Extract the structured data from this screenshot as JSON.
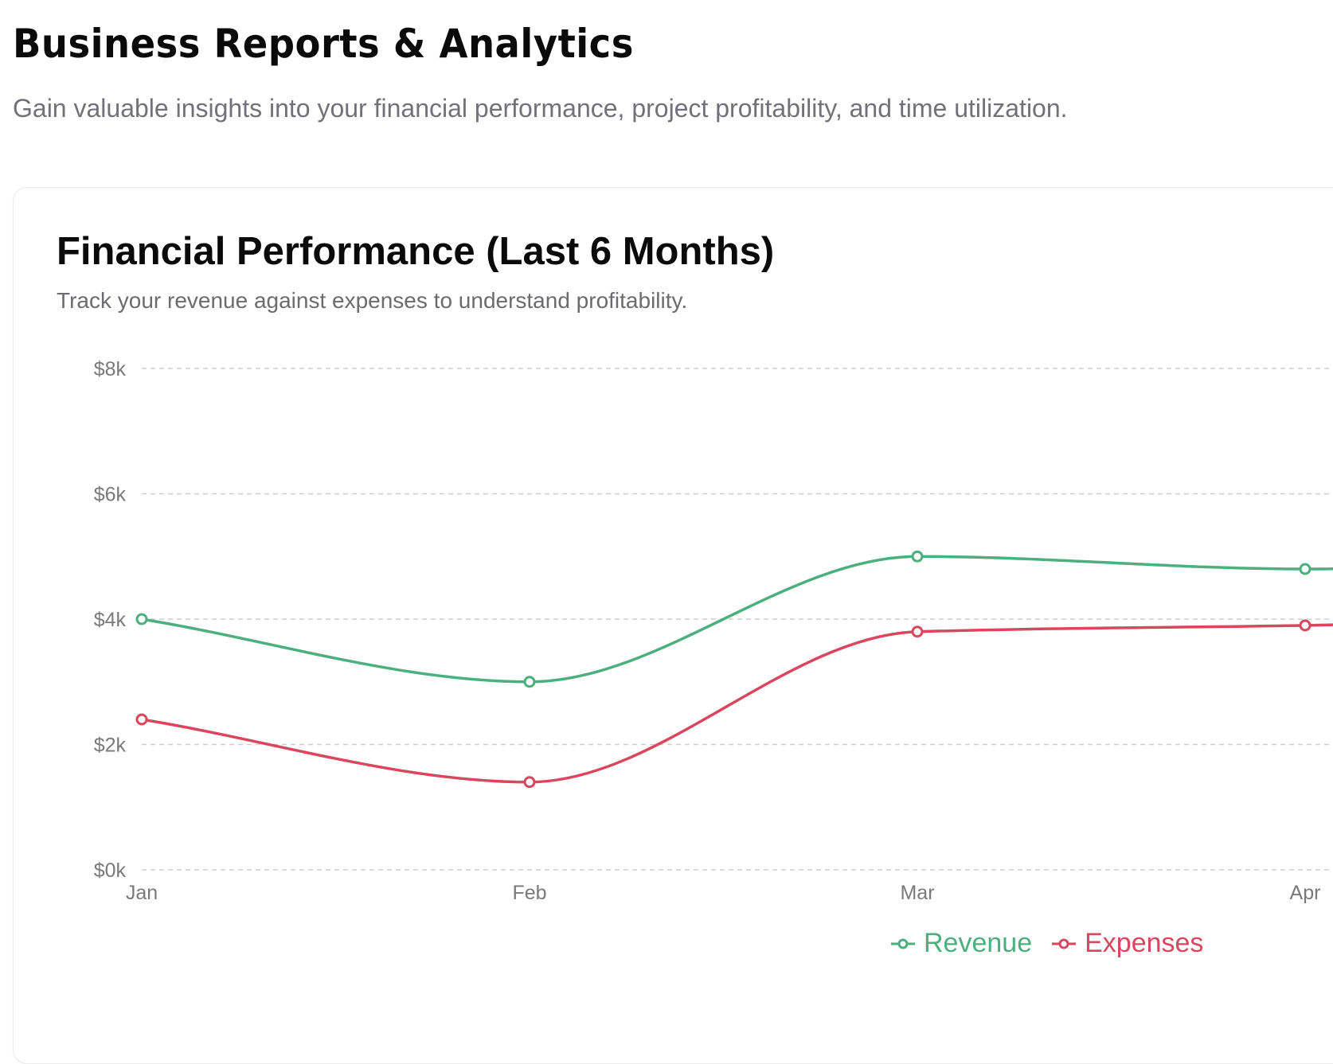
{
  "header": {
    "title": "Business Reports & Analytics",
    "subtitle": "Gain valuable insights into your financial performance, project profitability, and time utilization."
  },
  "card": {
    "title": "Financial Performance (Last 6 Months)",
    "subtitle": "Track your revenue against expenses to understand profitability."
  },
  "colors": {
    "revenue": "#4caf7d",
    "expenses": "#d9475e",
    "grid": "#cfcfcf",
    "tick": "#7a7a7a"
  },
  "chart_data": {
    "type": "line",
    "title": "Financial Performance (Last 6 Months)",
    "categories": [
      "Jan",
      "Feb",
      "Mar",
      "Apr"
    ],
    "series": [
      {
        "name": "Revenue",
        "values": [
          4000,
          3000,
          5000,
          4800
        ],
        "color": "#4caf7d"
      },
      {
        "name": "Expenses",
        "values": [
          2400,
          1400,
          3800,
          3900
        ],
        "color": "#d9475e"
      }
    ],
    "y_ticks": [
      "$0k",
      "$2k",
      "$4k",
      "$6k",
      "$8k"
    ],
    "y_tick_values": [
      0,
      2000,
      4000,
      6000,
      8000
    ],
    "ylim": [
      0,
      8000
    ],
    "grid": true,
    "legend_position": "bottom-center",
    "curve": "monotone"
  }
}
